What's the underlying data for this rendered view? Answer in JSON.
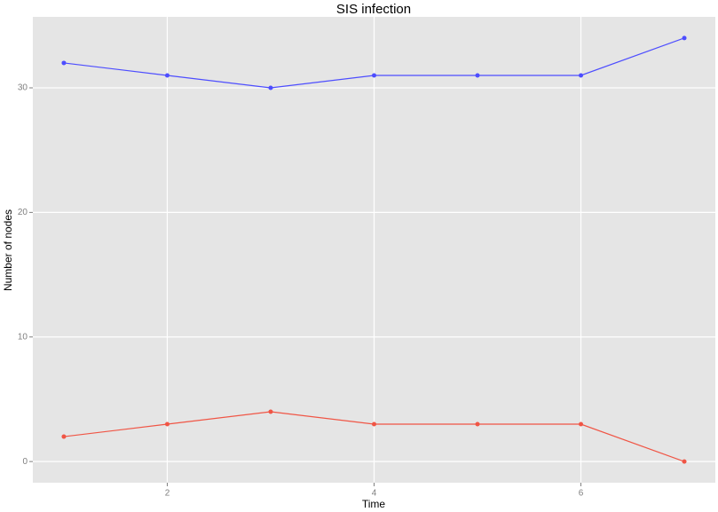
{
  "chart_data": {
    "type": "line",
    "title": "SIS infection",
    "x_label": "Time",
    "y_label": "Number of nodes",
    "x": [
      1,
      2,
      3,
      4,
      5,
      6,
      7
    ],
    "series": [
      {
        "color": "#4d4dff",
        "values": [
          32,
          31,
          30,
          31,
          31,
          31,
          34
        ]
      },
      {
        "color": "#f05545",
        "values": [
          2,
          3,
          4,
          3,
          3,
          3,
          0
        ]
      }
    ],
    "xlim": [
      0.7,
      7.3
    ],
    "xticks": [
      2,
      4,
      6
    ],
    "ylim": [
      -1.7,
      35.7
    ],
    "yticks": [
      0,
      10,
      20,
      30
    ],
    "grid": true,
    "panel_color": "#e5e5e5"
  }
}
